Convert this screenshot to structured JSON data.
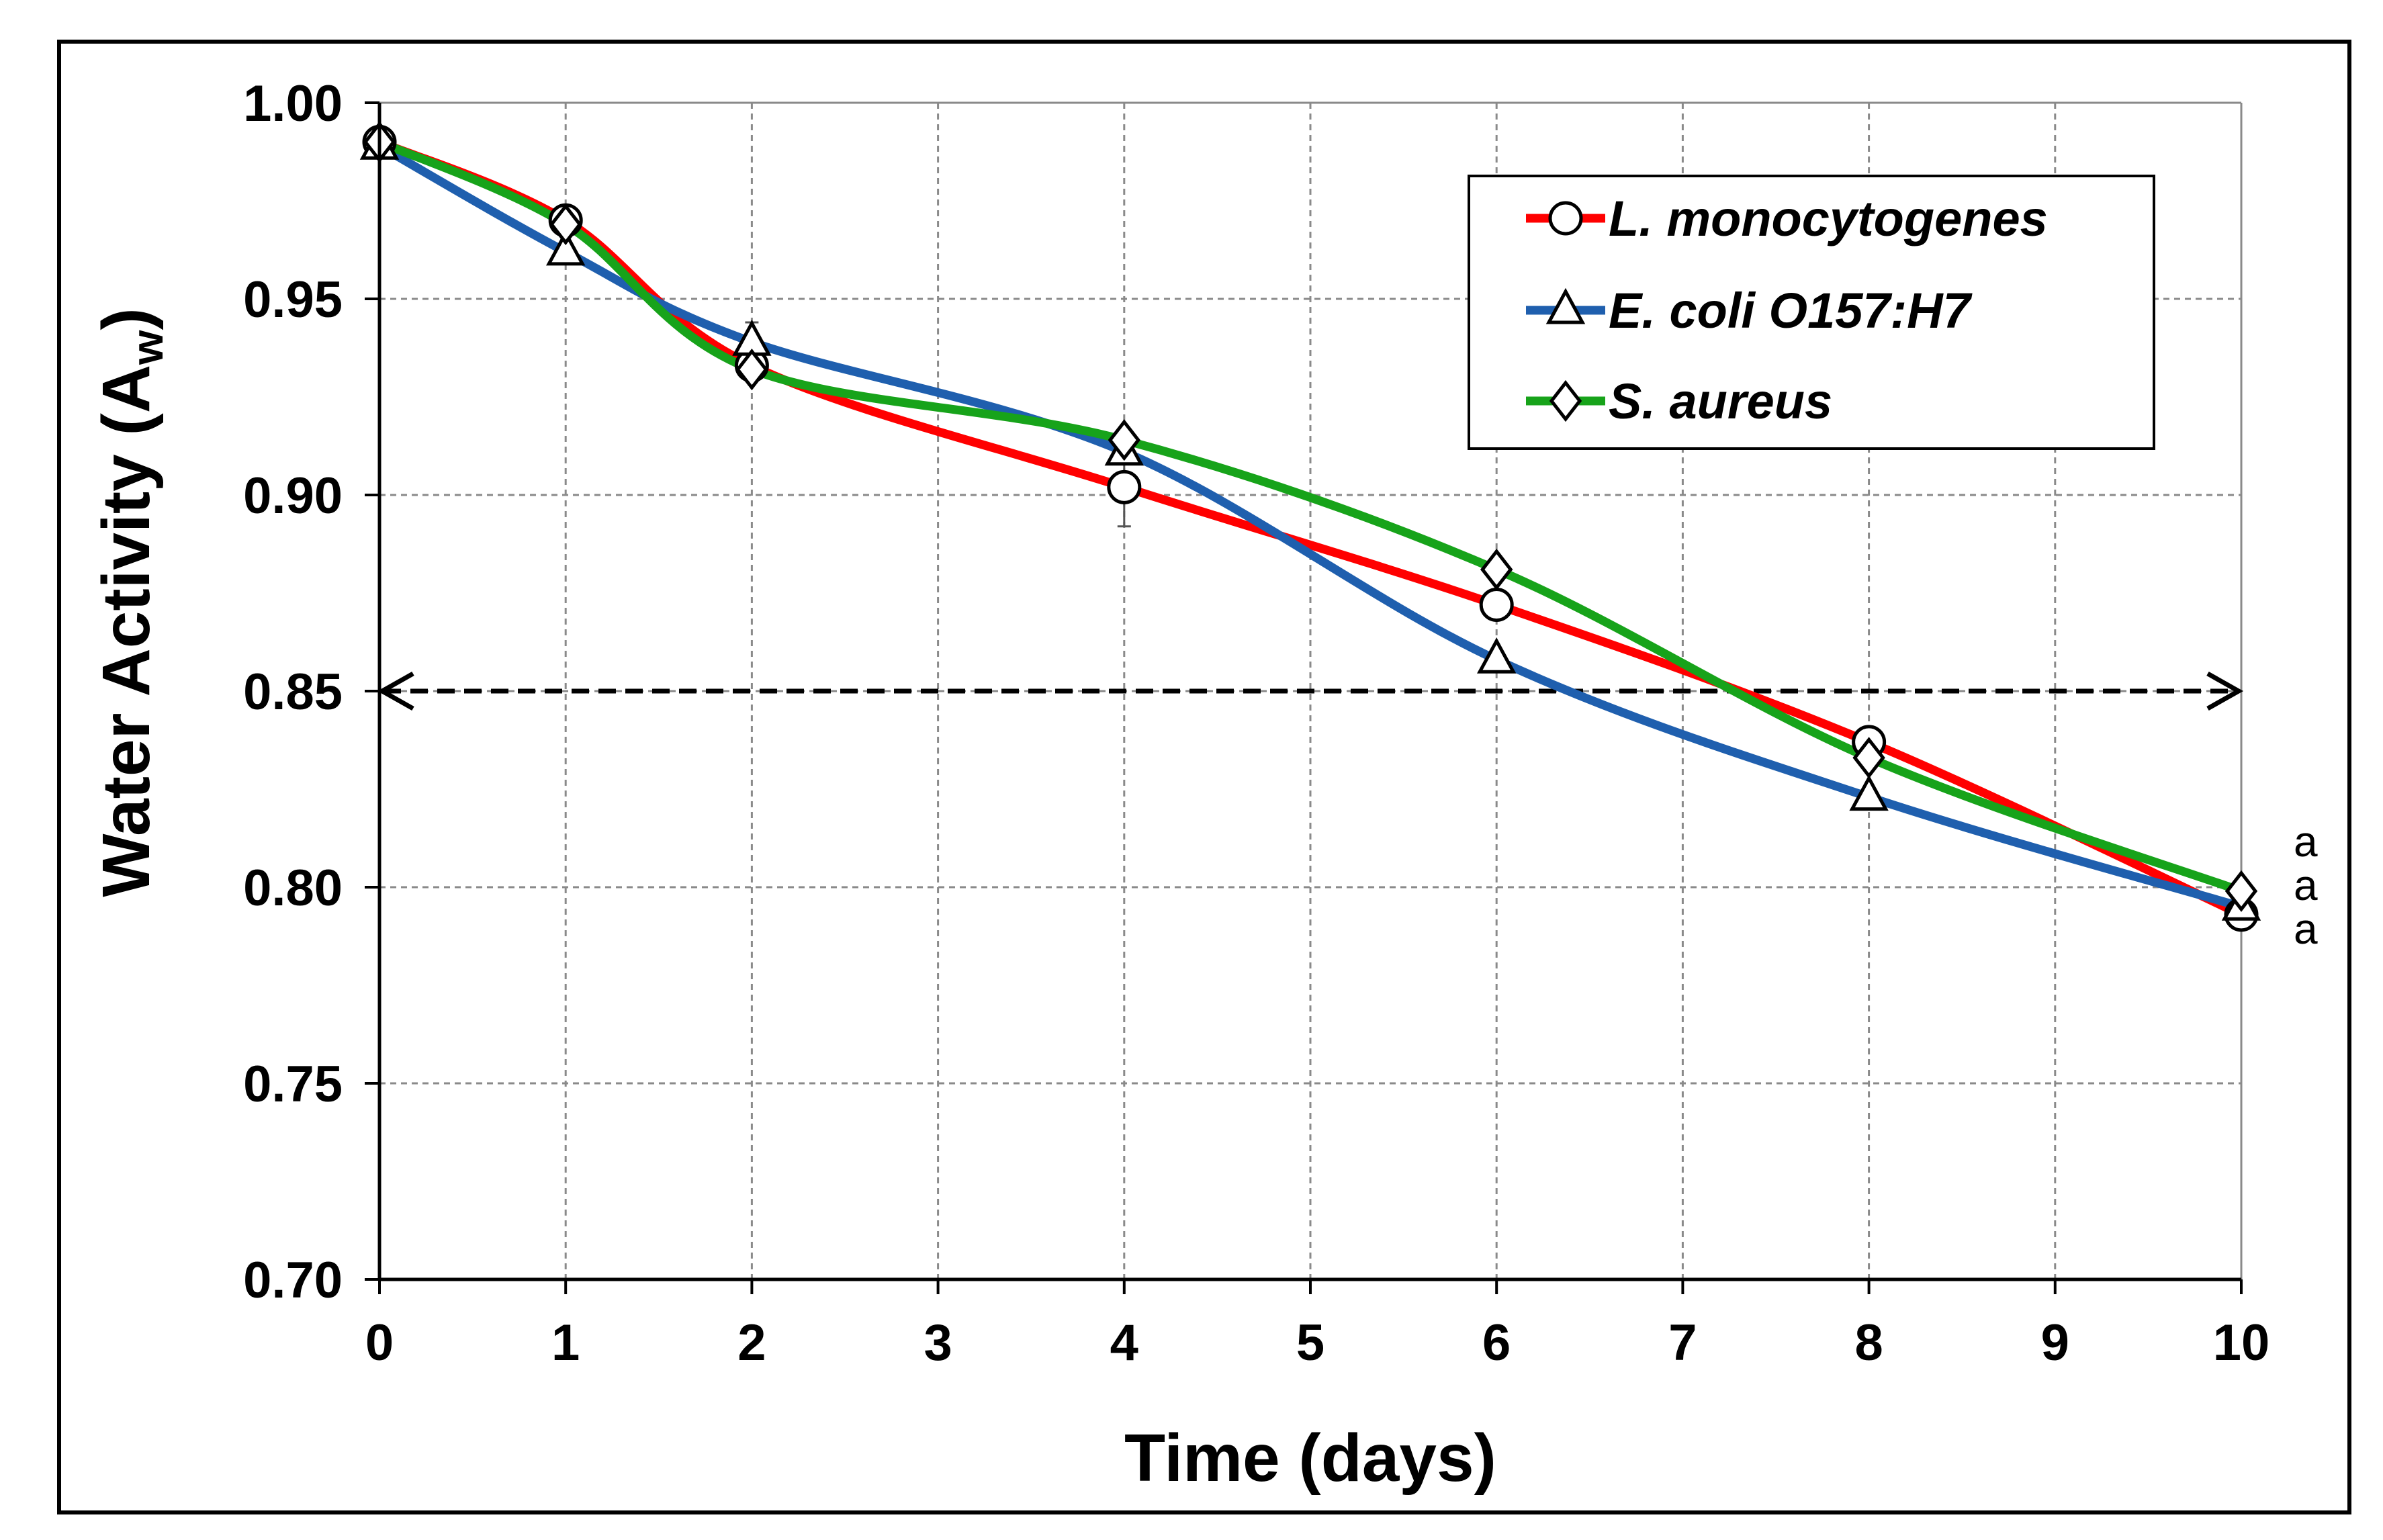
{
  "chart_data": {
    "type": "line",
    "title": "",
    "xlabel": "Time (days)",
    "ylabel": {
      "main": "Water Activity (A",
      "subscript": "w",
      "close": ")"
    },
    "xlim": [
      0,
      10
    ],
    "ylim": [
      0.7,
      1.0
    ],
    "x_ticks": [
      "0",
      "1",
      "2",
      "3",
      "4",
      "5",
      "6",
      "7",
      "8",
      "9",
      "10"
    ],
    "y_ticks": [
      "0.70",
      "0.75",
      "0.80",
      "0.85",
      "0.90",
      "0.95",
      "1.00"
    ],
    "grid": true,
    "legend_position": "top-right",
    "reference_line": {
      "y": 0.85,
      "x_from": 0,
      "x_to": 10,
      "style": "dashed double-arrow"
    },
    "series": [
      {
        "name": "L. monocytogenes",
        "color": "#ff0000",
        "marker": "circle",
        "x": [
          0,
          1,
          2,
          4,
          6,
          8,
          10
        ],
        "y": [
          0.99,
          0.97,
          0.933,
          0.902,
          0.872,
          0.837,
          0.793
        ],
        "error": [
          0.0,
          0.0,
          0.003,
          0.01,
          0.0,
          0.0,
          0.0
        ]
      },
      {
        "name": "E. coli O157:H7",
        "color": "#1f5fae",
        "marker": "triangle",
        "x": [
          0,
          1,
          2,
          4,
          6,
          8,
          10
        ],
        "y": [
          0.989,
          0.962,
          0.939,
          0.911,
          0.858,
          0.823,
          0.795
        ],
        "error": [
          0.0,
          0.0,
          0.005,
          0.0,
          0.0,
          0.0,
          0.0
        ]
      },
      {
        "name": "S. aureus",
        "color": "#17a31a",
        "marker": "diamond",
        "x": [
          0,
          1,
          2,
          4,
          6,
          8,
          10
        ],
        "y": [
          0.99,
          0.969,
          0.932,
          0.914,
          0.881,
          0.833,
          0.799
        ],
        "error": [
          0.0,
          0.0,
          0.0,
          0.0,
          0.0,
          0.0,
          0.0
        ]
      }
    ],
    "annotations": [
      "a",
      "a",
      "a"
    ]
  }
}
